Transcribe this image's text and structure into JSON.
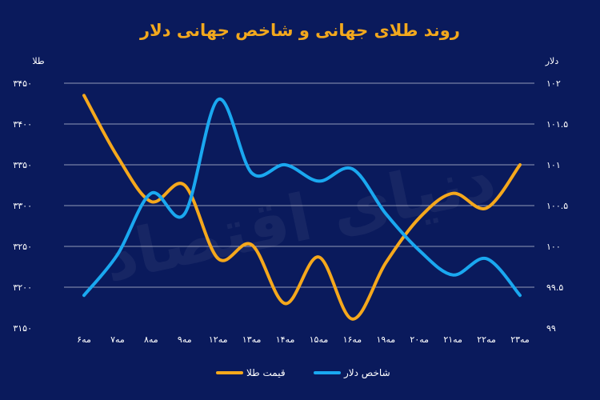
{
  "chart_data": {
    "type": "line",
    "title": "روند طلای جهانی و شاخص جهانی دلار",
    "categories": [
      "۶مه",
      "۷مه",
      "۸مه",
      "۹مه",
      "۱۲مه",
      "۱۳مه",
      "۱۴مه",
      "۱۵مه",
      "۱۶مه",
      "۱۹مه",
      "۲۰مه",
      "۲۱مه",
      "۲۲مه",
      "۲۳مه"
    ],
    "left_axis": {
      "unit_label": "طلا",
      "ylim": [
        3150,
        3450
      ],
      "ticks": [
        3150,
        3200,
        3250,
        3300,
        3350,
        3400,
        3450
      ],
      "tick_labels": [
        "۳۱۵۰",
        "۳۲۰۰",
        "۳۲۵۰",
        "۳۳۰۰",
        "۳۳۵۰",
        "۳۴۰۰",
        "۳۴۵۰"
      ]
    },
    "right_axis": {
      "unit_label": "دلار",
      "ylim": [
        99,
        102
      ],
      "ticks": [
        99,
        99.5,
        100,
        100.5,
        101,
        101.5,
        102
      ],
      "tick_labels": [
        "۹۹",
        "۹۹.۵",
        "۱۰۰",
        "۱۰۰.۵",
        "۱۰۱",
        "۱۰۱.۵",
        "۱۰۲"
      ]
    },
    "series": [
      {
        "name": "قیمت طلا",
        "axis": "left",
        "color": "#f5a81c",
        "values": [
          3435,
          3360,
          3305,
          3325,
          3235,
          3252,
          3180,
          3237,
          3161,
          3230,
          3285,
          3315,
          3297,
          3350
        ]
      },
      {
        "name": "شاخص دلار",
        "axis": "right",
        "color": "#1aa8f0",
        "values": [
          99.4,
          99.9,
          100.65,
          100.4,
          101.8,
          100.9,
          101.0,
          100.8,
          100.95,
          100.4,
          99.95,
          99.65,
          99.85,
          99.4
        ]
      }
    ],
    "grid": true,
    "legend_position": "bottom"
  },
  "watermark": "دنیای اقتصاد"
}
